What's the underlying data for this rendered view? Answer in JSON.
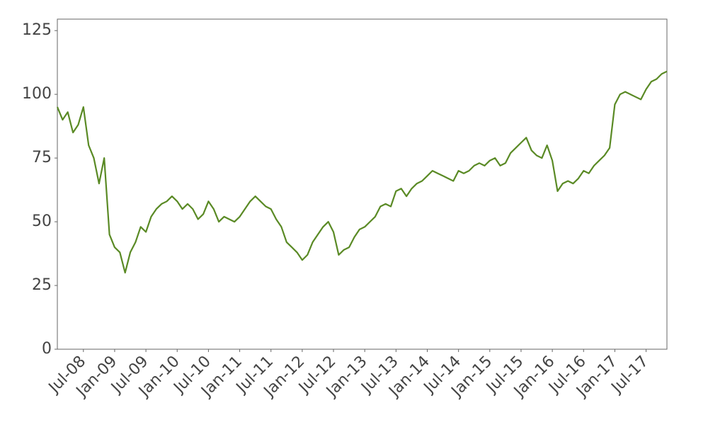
{
  "chart_data": {
    "type": "line",
    "x": [
      "2008-02",
      "2008-03",
      "2008-04",
      "2008-05",
      "2008-06",
      "2008-07",
      "2008-08",
      "2008-09",
      "2008-10",
      "2008-11",
      "2008-12",
      "2009-01",
      "2009-02",
      "2009-03",
      "2009-04",
      "2009-05",
      "2009-06",
      "2009-07",
      "2009-08",
      "2009-09",
      "2009-10",
      "2009-11",
      "2009-12",
      "2010-01",
      "2010-02",
      "2010-03",
      "2010-04",
      "2010-05",
      "2010-06",
      "2010-07",
      "2010-08",
      "2010-09",
      "2010-10",
      "2010-11",
      "2010-12",
      "2011-01",
      "2011-02",
      "2011-03",
      "2011-04",
      "2011-05",
      "2011-06",
      "2011-07",
      "2011-08",
      "2011-09",
      "2011-10",
      "2011-11",
      "2011-12",
      "2012-01",
      "2012-02",
      "2012-03",
      "2012-04",
      "2012-05",
      "2012-06",
      "2012-07",
      "2012-08",
      "2012-09",
      "2012-10",
      "2012-11",
      "2012-12",
      "2013-01",
      "2013-02",
      "2013-03",
      "2013-04",
      "2013-05",
      "2013-06",
      "2013-07",
      "2013-08",
      "2013-09",
      "2013-10",
      "2013-11",
      "2013-12",
      "2014-01",
      "2014-02",
      "2014-03",
      "2014-04",
      "2014-05",
      "2014-06",
      "2014-07",
      "2014-08",
      "2014-09",
      "2014-10",
      "2014-11",
      "2014-12",
      "2015-01",
      "2015-02",
      "2015-03",
      "2015-04",
      "2015-05",
      "2015-06",
      "2015-07",
      "2015-08",
      "2015-09",
      "2015-10",
      "2015-11",
      "2015-12",
      "2016-01",
      "2016-02",
      "2016-03",
      "2016-04",
      "2016-05",
      "2016-06",
      "2016-07",
      "2016-08",
      "2016-09",
      "2016-10",
      "2016-11",
      "2016-12",
      "2017-01",
      "2017-02",
      "2017-03",
      "2017-04",
      "2017-05",
      "2017-06",
      "2017-07",
      "2017-08",
      "2017-09",
      "2017-10",
      "2017-11"
    ],
    "series": [
      {
        "color": "#5a8a25",
        "values": [
          95,
          90,
          93,
          85,
          88,
          95,
          80,
          75,
          65,
          75,
          45,
          40,
          38,
          30,
          38,
          42,
          48,
          46,
          52,
          55,
          57,
          58,
          60,
          58,
          55,
          57,
          55,
          51,
          53,
          58,
          55,
          50,
          52,
          51,
          50,
          52,
          55,
          58,
          60,
          58,
          56,
          55,
          51,
          48,
          42,
          40,
          38,
          35,
          37,
          42,
          45,
          48,
          50,
          46,
          37,
          39,
          40,
          44,
          47,
          48,
          50,
          52,
          56,
          57,
          56,
          62,
          63,
          60,
          63,
          65,
          66,
          68,
          70,
          69,
          68,
          67,
          66,
          70,
          69,
          70,
          72,
          73,
          72,
          74,
          75,
          72,
          73,
          77,
          79,
          81,
          83,
          78,
          76,
          75,
          80,
          74,
          62,
          65,
          66,
          65,
          67,
          70,
          69,
          72,
          74,
          76,
          79,
          96,
          100,
          101,
          100,
          99,
          98,
          102,
          105,
          106,
          108,
          109
        ]
      }
    ],
    "xlim": [
      "2008-02",
      "2017-11"
    ],
    "xticks": [
      {
        "value": "2008-07",
        "label": "Jul-08"
      },
      {
        "value": "2009-01",
        "label": "Jan-09"
      },
      {
        "value": "2009-07",
        "label": "Jul-09"
      },
      {
        "value": "2010-01",
        "label": "Jan-10"
      },
      {
        "value": "2010-07",
        "label": "Jul-10"
      },
      {
        "value": "2011-01",
        "label": "Jan-11"
      },
      {
        "value": "2011-07",
        "label": "Jul-11"
      },
      {
        "value": "2012-01",
        "label": "Jan-12"
      },
      {
        "value": "2012-07",
        "label": "Jul-12"
      },
      {
        "value": "2013-01",
        "label": "Jan-13"
      },
      {
        "value": "2013-07",
        "label": "Jul-13"
      },
      {
        "value": "2014-01",
        "label": "Jan-14"
      },
      {
        "value": "2014-07",
        "label": "Jul-14"
      },
      {
        "value": "2015-01",
        "label": "Jan-15"
      },
      {
        "value": "2015-07",
        "label": "Jul-15"
      },
      {
        "value": "2016-01",
        "label": "Jan-16"
      },
      {
        "value": "2016-07",
        "label": "Jul-16"
      },
      {
        "value": "2017-01",
        "label": "Jan-17"
      },
      {
        "value": "2017-07",
        "label": "Jul-17"
      }
    ],
    "ylim": [
      0,
      129.5
    ],
    "yticks": [
      0,
      25,
      50,
      75,
      100,
      125
    ],
    "grid": false
  }
}
